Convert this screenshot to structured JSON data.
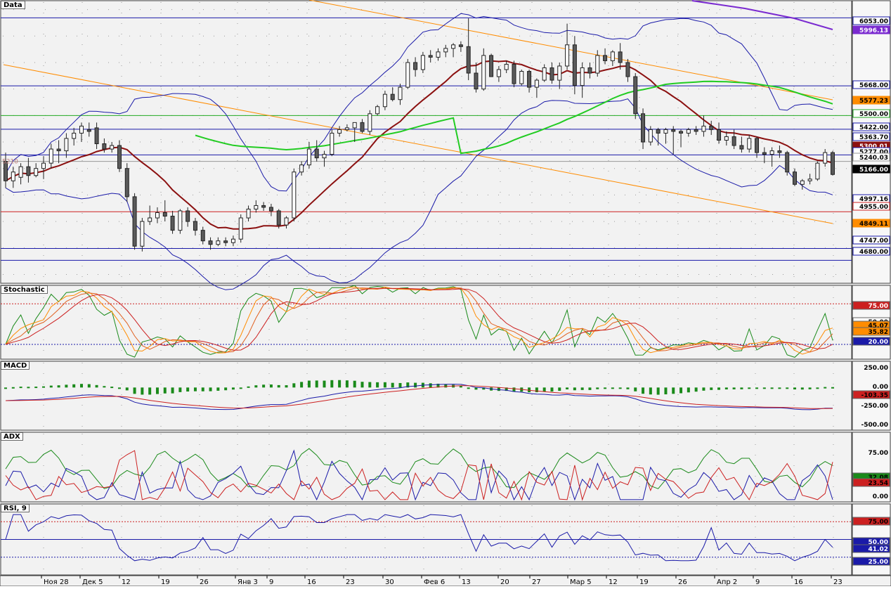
{
  "panes": {
    "data": {
      "title": "Data"
    },
    "stochastic": {
      "title": "Stochastic"
    },
    "macd": {
      "title": "MACD"
    },
    "adx": {
      "title": "ADX"
    },
    "rsi": {
      "title": "RSI, 9"
    }
  },
  "colors": {
    "background": "#f2f2f2",
    "grid_dot": "#9a9a9a",
    "candle_up": "#ffffff",
    "candle_down": "#5a5a5a",
    "bollinger": "#1a1aa8",
    "sma_red": "#8b1010",
    "sma_green": "#22cc22",
    "sma_purple": "#7a2ad0",
    "channel": "#ff8c00",
    "level_blue": "#1a1aa8",
    "level_green": "#22aa22",
    "level_red": "#cc2020"
  },
  "price_axis": {
    "labels": [
      {
        "value": "6053.00",
        "bg": "#ffffff",
        "fg": "#000000",
        "border": "#1a1aa8"
      },
      {
        "value": "5996.13",
        "bg": "#7a2ad0",
        "fg": "#ffffff",
        "border": "#7a2ad0"
      },
      {
        "value": "5668.00",
        "bg": "#ffffff",
        "fg": "#000000",
        "border": "#1a1aa8"
      },
      {
        "value": "5577.23",
        "bg": "#ff8c00",
        "fg": "#000000",
        "border": "#ff8c00"
      },
      {
        "value": "5500.00",
        "bg": "#ffffff",
        "fg": "#000000",
        "border": "#22aa22"
      },
      {
        "value": "5422.00",
        "bg": "#ffffff",
        "fg": "#000000",
        "border": "#1a1aa8"
      },
      {
        "value": "5363.70",
        "bg": "#ffffff",
        "fg": "#000000",
        "border": "#1a1aa8"
      },
      {
        "value": "5300.01",
        "bg": "#8b1010",
        "fg": "#ffffff",
        "border": "#8b1010"
      },
      {
        "value": "5277.00",
        "bg": "#ffffff",
        "fg": "#000000",
        "border": "#1a1aa8"
      },
      {
        "value": "5240.03",
        "bg": "#ffffff",
        "fg": "#000000",
        "border": "#999999"
      },
      {
        "value": "5166.00",
        "bg": "#000000",
        "fg": "#ffffff",
        "border": "#000000"
      },
      {
        "value": "4997.16",
        "bg": "#ffffff",
        "fg": "#000000",
        "border": "#1a1aa8"
      },
      {
        "value": "4955.00",
        "bg": "#ffffff",
        "fg": "#000000",
        "border": "#cc2020"
      },
      {
        "value": "4849.11",
        "bg": "#ff8c00",
        "fg": "#000000",
        "border": "#ff8c00"
      },
      {
        "value": "4747.00",
        "bg": "#ffffff",
        "fg": "#000000",
        "border": "#1a1aa8"
      },
      {
        "value": "4680.00",
        "bg": "#ffffff",
        "fg": "#000000",
        "border": "#1a1aa8"
      }
    ],
    "left_marker": "5210"
  },
  "horizontal_levels": [
    {
      "value": 6053,
      "color": "#1a1aa8"
    },
    {
      "value": 5668,
      "color": "#1a1aa8"
    },
    {
      "value": 5500,
      "color": "#22aa22"
    },
    {
      "value": 5422,
      "color": "#1a1aa8"
    },
    {
      "value": 5277,
      "color": "#1a1aa8"
    },
    {
      "value": 5240,
      "color": "#999999"
    },
    {
      "value": 4955,
      "color": "#cc2020"
    },
    {
      "value": 4747,
      "color": "#1a1aa8"
    },
    {
      "value": 4680,
      "color": "#1a1aa8"
    }
  ],
  "stochastic_axis": {
    "labels": [
      {
        "value": "75.00",
        "bg": "#cc2020",
        "fg": "#ffffff"
      },
      {
        "value": "50.00",
        "bg": "#ffffff",
        "fg": "#000000"
      },
      {
        "value": "45.07",
        "bg": "#ff8c00",
        "fg": "#000000"
      },
      {
        "value": "35.82",
        "bg": "#ff8c00",
        "fg": "#000000"
      },
      {
        "value": "20.00",
        "bg": "#1a1aa8",
        "fg": "#ffffff"
      }
    ]
  },
  "macd_axis": {
    "labels": [
      {
        "value": "250.00",
        "bg": "#ffffff",
        "fg": "#000000"
      },
      {
        "value": "0.00",
        "bg": "#ffffff",
        "fg": "#000000"
      },
      {
        "value": "-103.35",
        "bg": "#cc2020",
        "fg": "#000000"
      },
      {
        "value": "-250.00",
        "bg": "#ffffff",
        "fg": "#000000"
      },
      {
        "value": "-500.00",
        "bg": "#ffffff",
        "fg": "#000000"
      }
    ]
  },
  "adx_axis": {
    "labels": [
      {
        "value": "75.00",
        "bg": "#ffffff",
        "fg": "#000000"
      },
      {
        "value": "32.08",
        "bg": "#1a8a1a",
        "fg": "#000000"
      },
      {
        "value": "23.54",
        "bg": "#cc2020",
        "fg": "#000000"
      },
      {
        "value": "0.00",
        "bg": "#ffffff",
        "fg": "#000000"
      }
    ]
  },
  "rsi_axis": {
    "labels": [
      {
        "value": "75.00",
        "bg": "#cc2020",
        "fg": "#000000"
      },
      {
        "value": "50.00",
        "bg": "#1a1aa8",
        "fg": "#ffffff"
      },
      {
        "value": "41.02",
        "bg": "#1a1aa8",
        "fg": "#ffffff"
      },
      {
        "value": "25.00",
        "bg": "#1a1aa8",
        "fg": "#ffffff"
      }
    ]
  },
  "date_axis": {
    "labels": [
      "Ноя 28",
      "Дек 5",
      "12",
      "19",
      "26",
      "Янв 3",
      "9",
      "16",
      "23",
      "30",
      "Фев 6",
      "13",
      "20",
      "27",
      "Мар 5",
      "12",
      "19",
      "26",
      "Апр 2",
      "9",
      "16",
      "23"
    ]
  },
  "chart_data": {
    "type": "candlestick",
    "categories": [
      "Ноя 28",
      "Дек 5",
      "12",
      "19",
      "26",
      "Янв 3",
      "9",
      "16",
      "23",
      "30",
      "Фев 6",
      "13",
      "20",
      "27",
      "Мар 5",
      "12",
      "19",
      "26",
      "Апр 2",
      "9",
      "16",
      "23"
    ],
    "ohlc": [
      [
        5240,
        5290,
        5090,
        5130
      ],
      [
        5130,
        5210,
        5090,
        5180
      ],
      [
        5150,
        5230,
        5110,
        5210
      ],
      [
        5210,
        5260,
        5120,
        5160
      ],
      [
        5160,
        5230,
        5150,
        5200
      ],
      [
        5200,
        5270,
        5140,
        5230
      ],
      [
        5230,
        5340,
        5200,
        5310
      ],
      [
        5310,
        5360,
        5230,
        5300
      ],
      [
        5300,
        5400,
        5260,
        5370
      ],
      [
        5370,
        5430,
        5330,
        5400
      ],
      [
        5400,
        5460,
        5350,
        5440
      ],
      [
        5420,
        5460,
        5380,
        5410
      ],
      [
        5430,
        5460,
        5310,
        5340
      ],
      [
        5340,
        5370,
        5290,
        5310
      ],
      [
        5310,
        5350,
        5290,
        5330
      ],
      [
        5330,
        5360,
        5180,
        5200
      ],
      [
        5200,
        5230,
        5010,
        5040
      ],
      [
        5040,
        5060,
        4740,
        4760
      ],
      [
        4760,
        4920,
        4730,
        4900
      ],
      [
        4900,
        4990,
        4880,
        4920
      ],
      [
        4920,
        4980,
        4890,
        4950
      ],
      [
        4950,
        5020,
        4900,
        4930
      ],
      [
        4930,
        4960,
        4830,
        4850
      ],
      [
        4850,
        4970,
        4830,
        4960
      ],
      [
        4960,
        4980,
        4870,
        4900
      ],
      [
        4900,
        4920,
        4820,
        4850
      ],
      [
        4850,
        4870,
        4770,
        4790
      ],
      [
        4790,
        4810,
        4740,
        4770
      ],
      [
        4770,
        4810,
        4760,
        4790
      ],
      [
        4790,
        4810,
        4760,
        4780
      ],
      [
        4780,
        4820,
        4760,
        4800
      ],
      [
        4800,
        4940,
        4780,
        4920
      ],
      [
        4920,
        4990,
        4900,
        4970
      ],
      [
        4970,
        5020,
        4950,
        4990
      ],
      [
        4990,
        5010,
        4960,
        4980
      ],
      [
        4980,
        5000,
        4930,
        4960
      ],
      [
        4960,
        4970,
        4860,
        4880
      ],
      [
        4880,
        4930,
        4860,
        4920
      ],
      [
        4920,
        5200,
        4900,
        5180
      ],
      [
        5180,
        5240,
        5160,
        5220
      ],
      [
        5220,
        5350,
        5200,
        5310
      ],
      [
        5310,
        5360,
        5240,
        5260
      ],
      [
        5260,
        5300,
        5210,
        5280
      ],
      [
        5280,
        5420,
        5270,
        5400
      ],
      [
        5400,
        5440,
        5380,
        5420
      ],
      [
        5420,
        5450,
        5410,
        5430
      ],
      [
        5430,
        5460,
        5350,
        5460
      ],
      [
        5460,
        5480,
        5400,
        5410
      ],
      [
        5410,
        5530,
        5390,
        5510
      ],
      [
        5510,
        5560,
        5500,
        5550
      ],
      [
        5550,
        5640,
        5530,
        5620
      ],
      [
        5620,
        5660,
        5580,
        5590
      ],
      [
        5590,
        5680,
        5560,
        5660
      ],
      [
        5660,
        5820,
        5650,
        5800
      ],
      [
        5800,
        5830,
        5720,
        5760
      ],
      [
        5760,
        5860,
        5740,
        5840
      ],
      [
        5840,
        5870,
        5800,
        5830
      ],
      [
        5830,
        5880,
        5810,
        5860
      ],
      [
        5860,
        5900,
        5830,
        5880
      ],
      [
        5880,
        5910,
        5830,
        5900
      ],
      [
        5900,
        5920,
        5860,
        5890
      ],
      [
        5890,
        6050,
        5700,
        5740
      ],
      [
        5740,
        5800,
        5630,
        5650
      ],
      [
        5650,
        5880,
        5640,
        5840
      ],
      [
        5840,
        5850,
        5720,
        5720
      ],
      [
        5720,
        5780,
        5690,
        5760
      ],
      [
        5760,
        5810,
        5740,
        5790
      ],
      [
        5790,
        5810,
        5660,
        5680
      ],
      [
        5680,
        5760,
        5670,
        5750
      ],
      [
        5750,
        5760,
        5630,
        5660
      ],
      [
        5660,
        5710,
        5600,
        5700
      ],
      [
        5700,
        5790,
        5690,
        5770
      ],
      [
        5770,
        5800,
        5680,
        5700
      ],
      [
        5700,
        5800,
        5650,
        5780
      ],
      [
        5780,
        6020,
        5760,
        5900
      ],
      [
        5900,
        5950,
        5620,
        5670
      ],
      [
        5670,
        5800,
        5600,
        5770
      ],
      [
        5770,
        5800,
        5710,
        5740
      ],
      [
        5740,
        5870,
        5720,
        5840
      ],
      [
        5840,
        5880,
        5790,
        5810
      ],
      [
        5810,
        5870,
        5780,
        5860
      ],
      [
        5860,
        5910,
        5760,
        5800
      ],
      [
        5800,
        5820,
        5690,
        5720
      ],
      [
        5720,
        5740,
        5480,
        5510
      ],
      [
        5510,
        5540,
        5310,
        5350
      ],
      [
        5350,
        5440,
        5330,
        5420
      ],
      [
        5420,
        5430,
        5330,
        5400
      ],
      [
        5400,
        5430,
        5340,
        5420
      ],
      [
        5420,
        5440,
        5280,
        5410
      ],
      [
        5410,
        5420,
        5320,
        5400
      ],
      [
        5400,
        5430,
        5380,
        5420
      ],
      [
        5420,
        5440,
        5390,
        5410
      ],
      [
        5410,
        5500,
        5380,
        5440
      ],
      [
        5440,
        5470,
        5390,
        5420
      ],
      [
        5420,
        5460,
        5340,
        5360
      ],
      [
        5360,
        5410,
        5330,
        5380
      ],
      [
        5380,
        5420,
        5310,
        5330
      ],
      [
        5330,
        5380,
        5290,
        5310
      ],
      [
        5310,
        5390,
        5290,
        5370
      ],
      [
        5370,
        5380,
        5260,
        5290
      ],
      [
        5290,
        5320,
        5230,
        5280
      ],
      [
        5280,
        5320,
        5210,
        5300
      ],
      [
        5300,
        5330,
        5260,
        5290
      ],
      [
        5290,
        5300,
        5160,
        5180
      ],
      [
        5180,
        5200,
        5100,
        5110
      ],
      [
        5110,
        5140,
        5080,
        5130
      ],
      [
        5130,
        5170,
        5110,
        5140
      ],
      [
        5140,
        5240,
        5130,
        5230
      ],
      [
        5230,
        5310,
        5210,
        5290
      ],
      [
        5290,
        5300,
        5160,
        5166
      ]
    ],
    "y_range": [
      4550,
      6150
    ],
    "indicators": [
      "Bollinger Bands",
      "SMA (red)",
      "SMA (green)",
      "SMA (purple)",
      "Trend channel (orange)"
    ]
  }
}
